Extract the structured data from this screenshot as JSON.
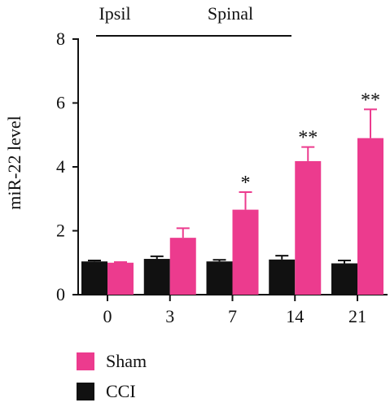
{
  "chart_data": {
    "type": "bar",
    "title": "",
    "header_labels": [
      "Ipsil",
      "Spinal"
    ],
    "ylabel": "miR-22 level",
    "xlabel": "",
    "ylim": [
      0,
      8
    ],
    "yticks": [
      "0",
      "2",
      "4",
      "6",
      "8"
    ],
    "categories": [
      "0",
      "3",
      "7",
      "14",
      "21"
    ],
    "series": [
      {
        "name": "CCI",
        "color": "#111111",
        "values": [
          1.04,
          1.12,
          1.04,
          1.1,
          0.98
        ],
        "errors": [
          0.03,
          0.08,
          0.05,
          0.12,
          0.09
        ]
      },
      {
        "name": "Sham",
        "color": "#ec3b8e",
        "values": [
          1.0,
          1.78,
          2.66,
          4.18,
          4.9
        ],
        "errors": [
          0.02,
          0.3,
          0.55,
          0.44,
          0.9
        ]
      }
    ],
    "significance": [
      "",
      "",
      "*",
      "**",
      "**"
    ],
    "legend": [
      {
        "label": "Sham",
        "color": "#ec3b8e"
      },
      {
        "label": "CCI",
        "color": "#111111"
      }
    ],
    "legend_position": "bottom-left"
  }
}
